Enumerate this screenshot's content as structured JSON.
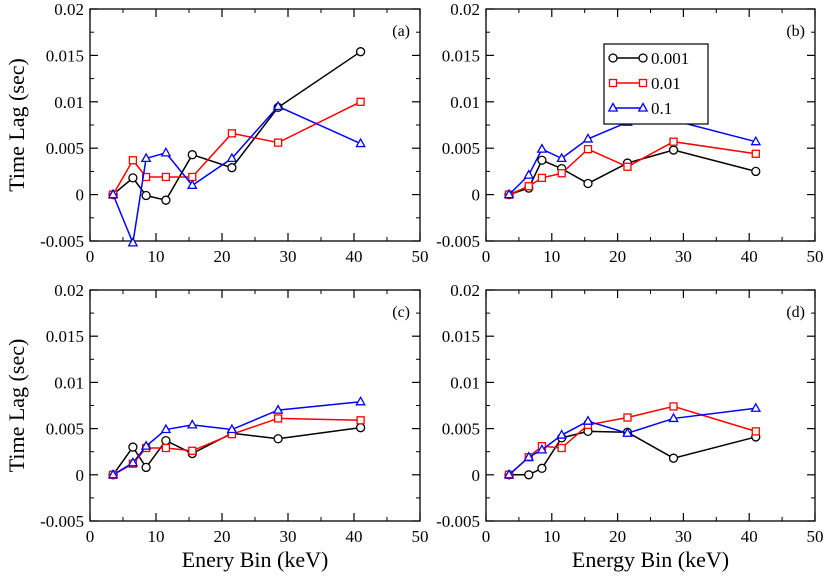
{
  "chart_data": [
    {
      "type": "line",
      "panel_label": "(a)",
      "xlabel": "",
      "ylabel": "Time Lag (sec)",
      "xlim": [
        0,
        50
      ],
      "ylim": [
        -0.005,
        0.02
      ],
      "xticks": [
        "0",
        "10",
        "20",
        "30",
        "40",
        "50"
      ],
      "yticks": [
        "-0.005",
        "0",
        "0.005",
        "0.01",
        "0.015",
        "0.02"
      ],
      "series": [
        {
          "name": "0.001",
          "color": "#000000",
          "marker": "circle",
          "x": [
            3.5,
            6.5,
            8.5,
            11.5,
            15.5,
            21.5,
            28.5,
            41
          ],
          "y": [
            0.0,
            0.0018,
            -0.0001,
            -0.0006,
            0.0043,
            0.0029,
            0.0094,
            0.0154
          ]
        },
        {
          "name": "0.01",
          "color": "#ff0000",
          "marker": "square",
          "x": [
            3.5,
            6.5,
            8.5,
            11.5,
            15.5,
            21.5,
            28.5,
            41
          ],
          "y": [
            0.0,
            0.0037,
            0.0019,
            0.0019,
            0.0019,
            0.0066,
            0.0056,
            0.01
          ]
        },
        {
          "name": "0.1",
          "color": "#0000ff",
          "marker": "triangle",
          "x": [
            3.5,
            6.5,
            8.5,
            11.5,
            15.5,
            21.5,
            28.5,
            41
          ],
          "y": [
            0.0,
            -0.0052,
            0.0039,
            0.0045,
            0.001,
            0.0039,
            0.0095,
            0.0055
          ]
        }
      ]
    },
    {
      "type": "line",
      "panel_label": "(b)",
      "xlabel": "",
      "ylabel": "",
      "xlim": [
        0,
        50
      ],
      "ylim": [
        -0.005,
        0.02
      ],
      "xticks": [
        "0",
        "10",
        "20",
        "30",
        "40",
        "50"
      ],
      "yticks": [
        "-0.005",
        "0",
        "0.005",
        "0.01",
        "0.015",
        "0.02"
      ],
      "legend": {
        "placement": "top-center",
        "entries": [
          "0.001",
          "0.01",
          "0.1"
        ]
      },
      "series": [
        {
          "name": "0.001",
          "color": "#000000",
          "marker": "circle",
          "x": [
            3.5,
            6.5,
            8.5,
            11.5,
            15.5,
            21.5,
            28.5,
            41
          ],
          "y": [
            0.0,
            0.0007,
            0.0037,
            0.0028,
            0.0012,
            0.0034,
            0.0048,
            0.0025
          ]
        },
        {
          "name": "0.01",
          "color": "#ff0000",
          "marker": "square",
          "x": [
            3.5,
            6.5,
            8.5,
            11.5,
            15.5,
            21.5,
            28.5,
            41
          ],
          "y": [
            0.0,
            0.0009,
            0.0018,
            0.0023,
            0.0049,
            0.003,
            0.0057,
            0.0044
          ]
        },
        {
          "name": "0.1",
          "color": "#0000ff",
          "marker": "triangle",
          "x": [
            3.5,
            6.5,
            8.5,
            11.5,
            15.5,
            21.5,
            28.5,
            41
          ],
          "y": [
            0.0,
            0.0021,
            0.0049,
            0.0039,
            0.006,
            0.0078,
            0.008,
            0.0057
          ]
        }
      ]
    },
    {
      "type": "line",
      "panel_label": "(c)",
      "xlabel": "Enery Bin (keV)",
      "ylabel": "Time Lag (sec)",
      "xlim": [
        0,
        50
      ],
      "ylim": [
        -0.005,
        0.02
      ],
      "xticks": [
        "0",
        "10",
        "20",
        "30",
        "40",
        "50"
      ],
      "yticks": [
        "-0.005",
        "0",
        "0.005",
        "0.01",
        "0.015",
        "0.02"
      ],
      "series": [
        {
          "name": "0.001",
          "color": "#000000",
          "marker": "circle",
          "x": [
            3.5,
            6.5,
            8.5,
            11.5,
            15.5,
            21.5,
            28.5,
            41
          ],
          "y": [
            0.0,
            0.003,
            0.0008,
            0.0037,
            0.0023,
            0.0045,
            0.0039,
            0.0051
          ]
        },
        {
          "name": "0.01",
          "color": "#ff0000",
          "marker": "square",
          "x": [
            3.5,
            6.5,
            8.5,
            11.5,
            15.5,
            21.5,
            28.5,
            41
          ],
          "y": [
            0.0,
            0.0012,
            0.0029,
            0.0029,
            0.0026,
            0.0044,
            0.0061,
            0.0059
          ]
        },
        {
          "name": "0.1",
          "color": "#0000ff",
          "marker": "triangle",
          "x": [
            3.5,
            6.5,
            8.5,
            11.5,
            15.5,
            21.5,
            28.5,
            41
          ],
          "y": [
            0.0,
            0.0013,
            0.0031,
            0.0049,
            0.0054,
            0.0049,
            0.007,
            0.0079
          ]
        }
      ]
    },
    {
      "type": "line",
      "panel_label": "(d)",
      "xlabel": "Energy Bin (keV)",
      "ylabel": "",
      "xlim": [
        0,
        50
      ],
      "ylim": [
        -0.005,
        0.02
      ],
      "xticks": [
        "0",
        "10",
        "20",
        "30",
        "40",
        "50"
      ],
      "yticks": [
        "-0.005",
        "0",
        "0.005",
        "0.01",
        "0.015",
        "0.02"
      ],
      "series": [
        {
          "name": "0.001",
          "color": "#000000",
          "marker": "circle",
          "x": [
            3.5,
            6.5,
            8.5,
            11.5,
            15.5,
            21.5,
            28.5,
            41
          ],
          "y": [
            0.0,
            0.0,
            0.0007,
            0.004,
            0.0047,
            0.0046,
            0.0018,
            0.0041
          ]
        },
        {
          "name": "0.01",
          "color": "#ff0000",
          "marker": "square",
          "x": [
            3.5,
            6.5,
            8.5,
            11.5,
            15.5,
            21.5,
            28.5,
            41
          ],
          "y": [
            0.0,
            0.0019,
            0.0031,
            0.0029,
            0.0054,
            0.0062,
            0.0074,
            0.0047
          ]
        },
        {
          "name": "0.1",
          "color": "#0000ff",
          "marker": "triangle",
          "x": [
            3.5,
            6.5,
            8.5,
            11.5,
            15.5,
            21.5,
            28.5,
            41
          ],
          "y": [
            0.0,
            0.0019,
            0.0027,
            0.0043,
            0.0058,
            0.0045,
            0.0061,
            0.0072
          ]
        }
      ]
    }
  ]
}
